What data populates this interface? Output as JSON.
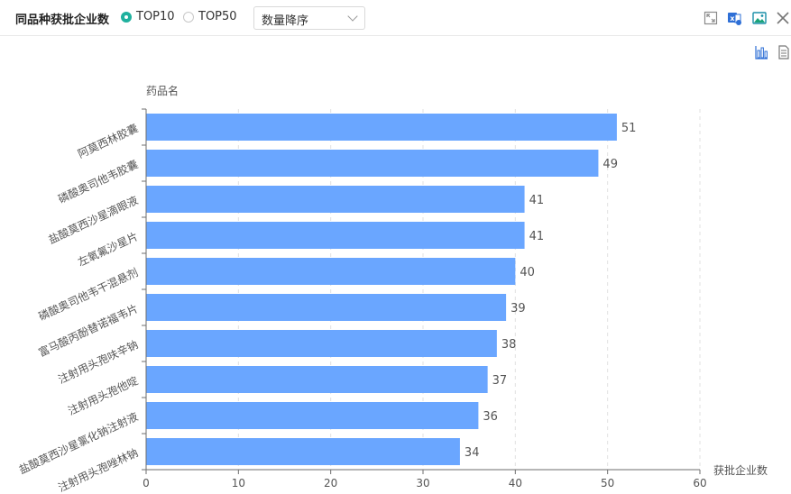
{
  "header": {
    "title": "同品种获批企业数",
    "options": [
      {
        "label": "TOP10",
        "checked": true
      },
      {
        "label": "TOP50",
        "checked": false
      }
    ],
    "sort_value": "数量降序",
    "icons": [
      "fullscreen-icon",
      "excel-export-icon",
      "image-export-icon",
      "close-icon"
    ]
  },
  "chart_toolbar": {
    "icons": [
      "bar-chart-icon",
      "data-view-icon"
    ]
  },
  "colors": {
    "bar": "#6aa6ff",
    "accent": "#1fb19e"
  },
  "chart_data": {
    "type": "bar",
    "orientation": "horizontal",
    "categories": [
      "阿莫西林胶囊",
      "磷酸奥司他韦胶囊",
      "盐酸莫西沙星滴眼液",
      "左氧氟沙星片",
      "磷酸奥司他韦干混悬剂",
      "富马酸丙酚替诺福韦片",
      "注射用头孢呋辛钠",
      "注射用头孢他啶",
      "盐酸莫西沙星氯化钠注射液",
      "注射用头孢唑林钠"
    ],
    "values": [
      51,
      49,
      41,
      41,
      40,
      39,
      38,
      37,
      36,
      34
    ],
    "xlabel": "获批企业数",
    "ylabel": "药品名",
    "xlim": [
      0,
      60
    ],
    "xticks": [
      0,
      10,
      20,
      30,
      40,
      50,
      60
    ],
    "grid": true,
    "data_labels": true
  }
}
